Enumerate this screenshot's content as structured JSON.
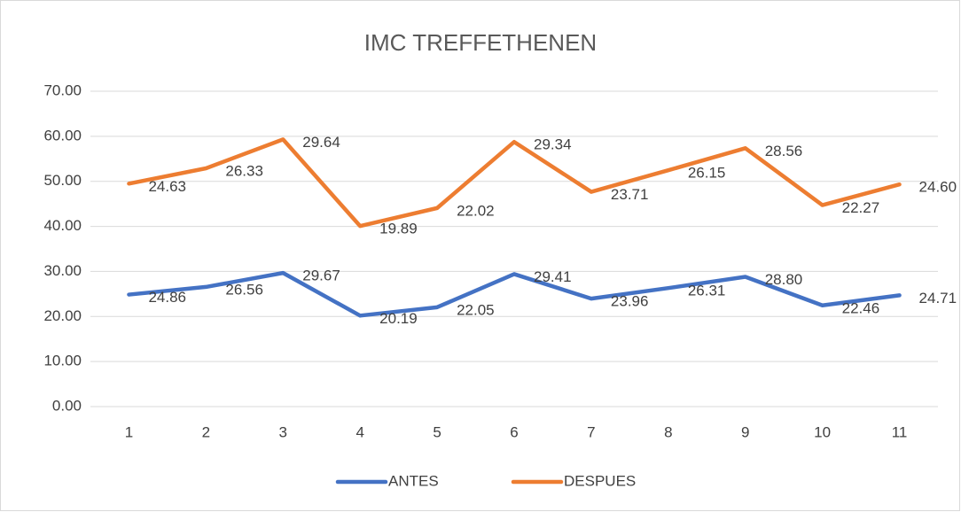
{
  "chart_data": {
    "type": "line",
    "stacked": true,
    "title": "IMC TREFFETHENEN",
    "categories": [
      "1",
      "2",
      "3",
      "4",
      "5",
      "6",
      "7",
      "8",
      "9",
      "10",
      "11"
    ],
    "series": [
      {
        "name": "ANTES",
        "color": "#4472c4",
        "values": [
          24.86,
          26.56,
          29.67,
          20.19,
          22.05,
          29.41,
          23.96,
          26.31,
          28.8,
          22.46,
          24.71
        ],
        "value_labels": [
          "24.86",
          "26.56",
          "29.67",
          "20.19",
          "22.05",
          "29.41",
          "23.96",
          "26.31",
          "28.80",
          "22.46",
          "24.71"
        ]
      },
      {
        "name": "DESPUES",
        "color": "#ed7d31",
        "values": [
          24.63,
          26.33,
          29.64,
          19.89,
          22.02,
          29.34,
          23.71,
          26.15,
          28.56,
          22.27,
          24.6
        ],
        "value_labels": [
          "24.63",
          "26.33",
          "29.64",
          "19.89",
          "22.02",
          "29.34",
          "23.71",
          "26.15",
          "28.56",
          "22.27",
          "24.60"
        ]
      }
    ],
    "ylim": [
      0,
      70
    ],
    "yticks": [
      {
        "value": 0,
        "label": "0.00"
      },
      {
        "value": 10,
        "label": "10.00"
      },
      {
        "value": 20,
        "label": "20.00"
      },
      {
        "value": 30,
        "label": "30.00"
      },
      {
        "value": 40,
        "label": "40.00"
      },
      {
        "value": 50,
        "label": "50.00"
      },
      {
        "value": 60,
        "label": "60.00"
      },
      {
        "value": 70,
        "label": "70.00"
      }
    ],
    "grid": true,
    "legend": "bottom"
  }
}
